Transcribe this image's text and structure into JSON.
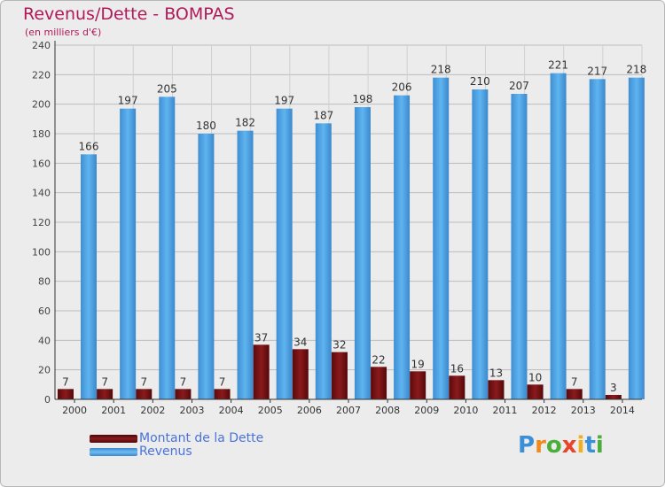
{
  "title": "Revenus/Dette - BOMPAS",
  "subtitle": "(en milliers d'€)",
  "logo": {
    "text": "Proxiti",
    "colors": [
      "#3b8fd6",
      "#f08a1e",
      "#4aae3b",
      "#e8432b",
      "#f2b01e",
      "#3b8fd6",
      "#4aae3b"
    ]
  },
  "colors": {
    "dette": "#6e0f10",
    "revenus": "#4aa6e8",
    "title": "#b01a5a",
    "legend_text": "#4a73d9",
    "background": "#ececec"
  },
  "chart_data": {
    "type": "bar",
    "categories": [
      "2000",
      "2001",
      "2002",
      "2003",
      "2004",
      "2005",
      "2006",
      "2007",
      "2008",
      "2009",
      "2010",
      "2011",
      "2012",
      "2013",
      "2014"
    ],
    "series": [
      {
        "name": "Montant de la Dette",
        "values": [
          7,
          7,
          7,
          7,
          7,
          37,
          34,
          32,
          22,
          19,
          16,
          13,
          10,
          7,
          3
        ]
      },
      {
        "name": "Revenus",
        "values": [
          166,
          197,
          205,
          180,
          182,
          197,
          187,
          198,
          206,
          218,
          210,
          207,
          221,
          217,
          218
        ]
      }
    ],
    "ylim": [
      0,
      240
    ],
    "yticks": [
      0,
      20,
      40,
      60,
      80,
      100,
      120,
      140,
      160,
      180,
      200,
      220,
      240
    ],
    "grid": true,
    "legend_position": "bottom-left"
  }
}
